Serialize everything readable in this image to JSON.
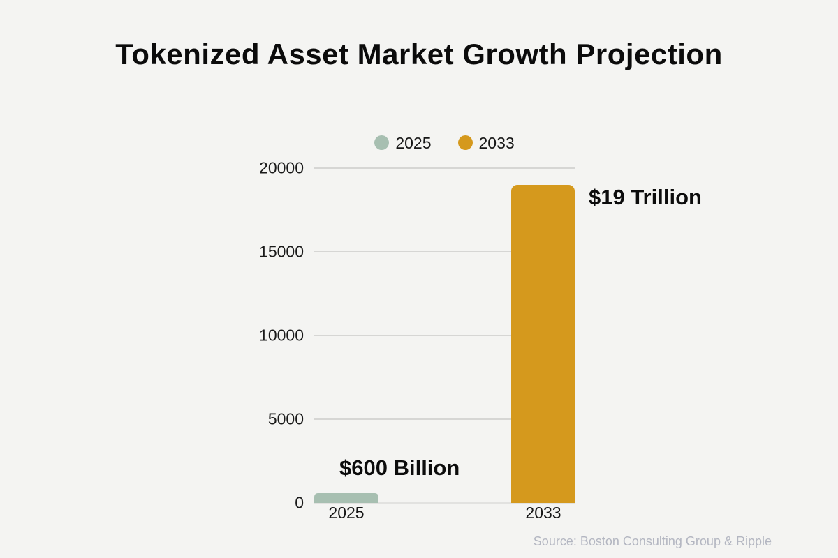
{
  "page": {
    "background_color": "#f4f4f2"
  },
  "header": {
    "title": "Tokenized Asset Market Growth Projection"
  },
  "legend": {
    "items": [
      {
        "label": "2025",
        "color": "#a7bfb1"
      },
      {
        "label": "2033",
        "color": "#d5991d"
      }
    ]
  },
  "chart_data": {
    "type": "bar",
    "title": "Tokenized Asset Market Growth Projection",
    "categories": [
      "2025",
      "2033"
    ],
    "values": [
      600,
      19000
    ],
    "bar_colors": [
      "#a7bfb1",
      "#d5991d"
    ],
    "annotations": [
      "$600 Billion",
      "$19 Trillion"
    ],
    "ylim": [
      0,
      20000
    ],
    "yticks": [
      0,
      5000,
      10000,
      15000,
      20000
    ],
    "ytick_labels": [
      "0",
      "5000",
      "10000",
      "15000",
      "20000"
    ],
    "xlabel": "",
    "ylabel": "",
    "grid": true,
    "gridline_color": "#d6d6d4",
    "legend": [
      "2025",
      "2033"
    ],
    "legend_position": "top"
  },
  "footer": {
    "source": "Source: Boston Consulting Group & Ripple"
  }
}
